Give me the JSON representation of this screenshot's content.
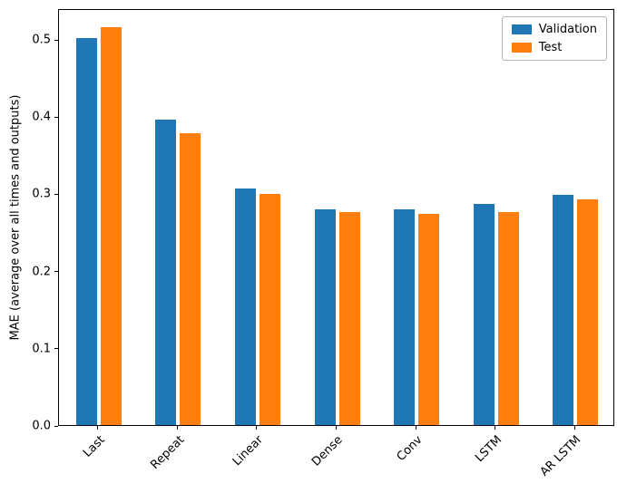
{
  "chart_data": {
    "type": "bar",
    "title": "",
    "xlabel": "",
    "ylabel": "MAE (average over all times and outputs)",
    "categories": [
      "Last",
      "Repeat",
      "Linear",
      "Dense",
      "Conv",
      "LSTM",
      "AR LSTM"
    ],
    "series": [
      {
        "name": "Validation",
        "color": "#1f77b4",
        "values": [
          0.501,
          0.396,
          0.306,
          0.28,
          0.28,
          0.286,
          0.298
        ]
      },
      {
        "name": "Test",
        "color": "#ff7f0e",
        "values": [
          0.515,
          0.378,
          0.299,
          0.276,
          0.274,
          0.276,
          0.292
        ]
      }
    ],
    "yticks": [
      0.0,
      0.1,
      0.2,
      0.3,
      0.4,
      0.5
    ],
    "ylim": [
      0,
      0.54
    ],
    "grid": false,
    "legend_position": "upper right",
    "xtick_rotation": 45
  }
}
